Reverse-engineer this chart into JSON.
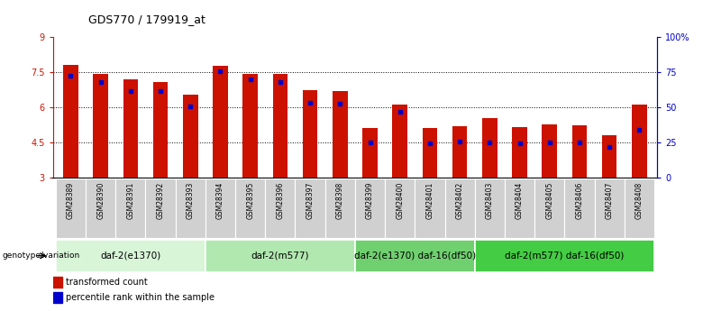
{
  "title": "GDS770 / 179919_at",
  "samples": [
    "GSM28389",
    "GSM28390",
    "GSM28391",
    "GSM28392",
    "GSM28393",
    "GSM28394",
    "GSM28395",
    "GSM28396",
    "GSM28397",
    "GSM28398",
    "GSM28399",
    "GSM28400",
    "GSM28401",
    "GSM28402",
    "GSM28403",
    "GSM28404",
    "GSM28405",
    "GSM28406",
    "GSM28407",
    "GSM28408"
  ],
  "bar_heights": [
    7.8,
    7.45,
    7.2,
    7.1,
    6.55,
    7.78,
    7.45,
    7.42,
    6.72,
    6.7,
    5.1,
    6.12,
    5.1,
    5.2,
    5.55,
    5.15,
    5.25,
    5.22,
    4.8,
    6.12
  ],
  "blue_positions": [
    7.35,
    7.1,
    6.7,
    6.7,
    6.05,
    7.55,
    7.2,
    7.1,
    6.2,
    6.15,
    4.48,
    5.82,
    4.47,
    4.55,
    4.5,
    4.47,
    4.5,
    4.5,
    4.3,
    5.05
  ],
  "ymin": 3.0,
  "ymax": 9.0,
  "yticks_left": [
    3.0,
    4.5,
    6.0,
    7.5,
    9.0
  ],
  "ytick_labels_left": [
    "3",
    "4.5",
    "6",
    "7.5",
    "9"
  ],
  "right_yticks_data": [
    3.0,
    4.5,
    6.0,
    7.5,
    9.0
  ],
  "right_ytick_labels": [
    "0",
    "25",
    "50",
    "75",
    "100%"
  ],
  "dotted_yticks": [
    4.5,
    6.0,
    7.5
  ],
  "bar_color": "#cc1100",
  "blue_color": "#0000cc",
  "groups": [
    {
      "label": "daf-2(e1370)",
      "start": 0,
      "end": 5,
      "color": "#d8f5d8"
    },
    {
      "label": "daf-2(m577)",
      "start": 5,
      "end": 10,
      "color": "#b0e8b0"
    },
    {
      "label": "daf-2(e1370) daf-16(df50)",
      "start": 10,
      "end": 14,
      "color": "#70d070"
    },
    {
      "label": "daf-2(m577) daf-16(df50)",
      "start": 14,
      "end": 20,
      "color": "#44cc44"
    }
  ],
  "group_label": "genotype/variation",
  "bar_width": 0.5
}
